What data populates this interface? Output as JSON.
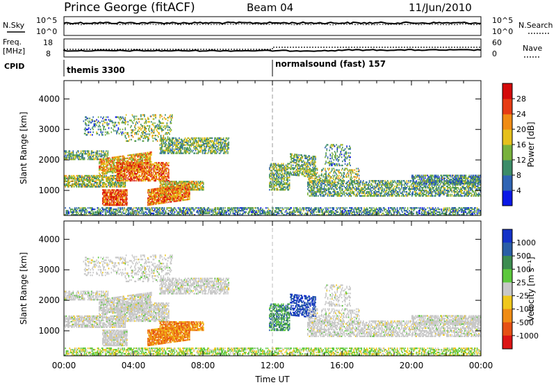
{
  "header": {
    "station": "Prince George (fitACF)",
    "beam": "Beam 04",
    "date": "11/Jun/2010"
  },
  "strip": {
    "nsky_label": "N.Sky",
    "nsky_ticks": [
      "10^5",
      "10^0"
    ],
    "nsearch_label": "N.Search",
    "nsearch_ticks": [
      "10^5",
      "10^0"
    ],
    "freq_label": "Freq.",
    "freq_unit": "[MHz]",
    "freq_ticks": [
      "18",
      "8"
    ],
    "nave_label": "Nave",
    "nave_ticks": [
      "60",
      "0"
    ],
    "cpid_label": "CPID",
    "cpid_segments": [
      {
        "name": "themis 3300",
        "start_hour": 0
      },
      {
        "name": "normalsound (fast) 157",
        "start_hour": 12
      }
    ]
  },
  "chart_data": [
    {
      "type": "heatmap",
      "title": "Power",
      "ylabel": "Slant Range [km]",
      "xlabel": "",
      "x_range_hours": [
        0,
        24
      ],
      "ylim": [
        180,
        4600
      ],
      "yticks": [
        "1000",
        "2000",
        "3000",
        "4000"
      ],
      "colorbar": {
        "label": "Power [dB]",
        "ticks": [
          "4",
          "8",
          "12",
          "16",
          "20",
          "24",
          "28"
        ],
        "range": [
          0,
          30
        ],
        "colors": [
          "#0a18e6",
          "#2f64b4",
          "#3c8c68",
          "#78b23c",
          "#e6c01c",
          "#f08c14",
          "#e63c14",
          "#d40a0a"
        ]
      }
    },
    {
      "type": "heatmap",
      "title": "Velocity",
      "ylabel": "Slant Range [km]",
      "xlabel": "Time UT",
      "x_range_hours": [
        0,
        24
      ],
      "xticks": [
        "00:00",
        "04:00",
        "08:00",
        "12:00",
        "16:00",
        "20:00",
        "00:00"
      ],
      "ylim": [
        180,
        4600
      ],
      "yticks": [
        "1000",
        "2000",
        "3000",
        "4000"
      ],
      "colorbar": {
        "label": "Velocity [m s⁻¹]",
        "ticks": [
          "1000",
          "500",
          "100",
          "25",
          "-25",
          "-100",
          "-500",
          "-1000"
        ],
        "colors": [
          "#1432c8",
          "#2a5ea6",
          "#3c8c50",
          "#5cc83c",
          "#c8c8c8",
          "#f0c81c",
          "#f08c14",
          "#e65014",
          "#dc1414"
        ]
      }
    }
  ]
}
